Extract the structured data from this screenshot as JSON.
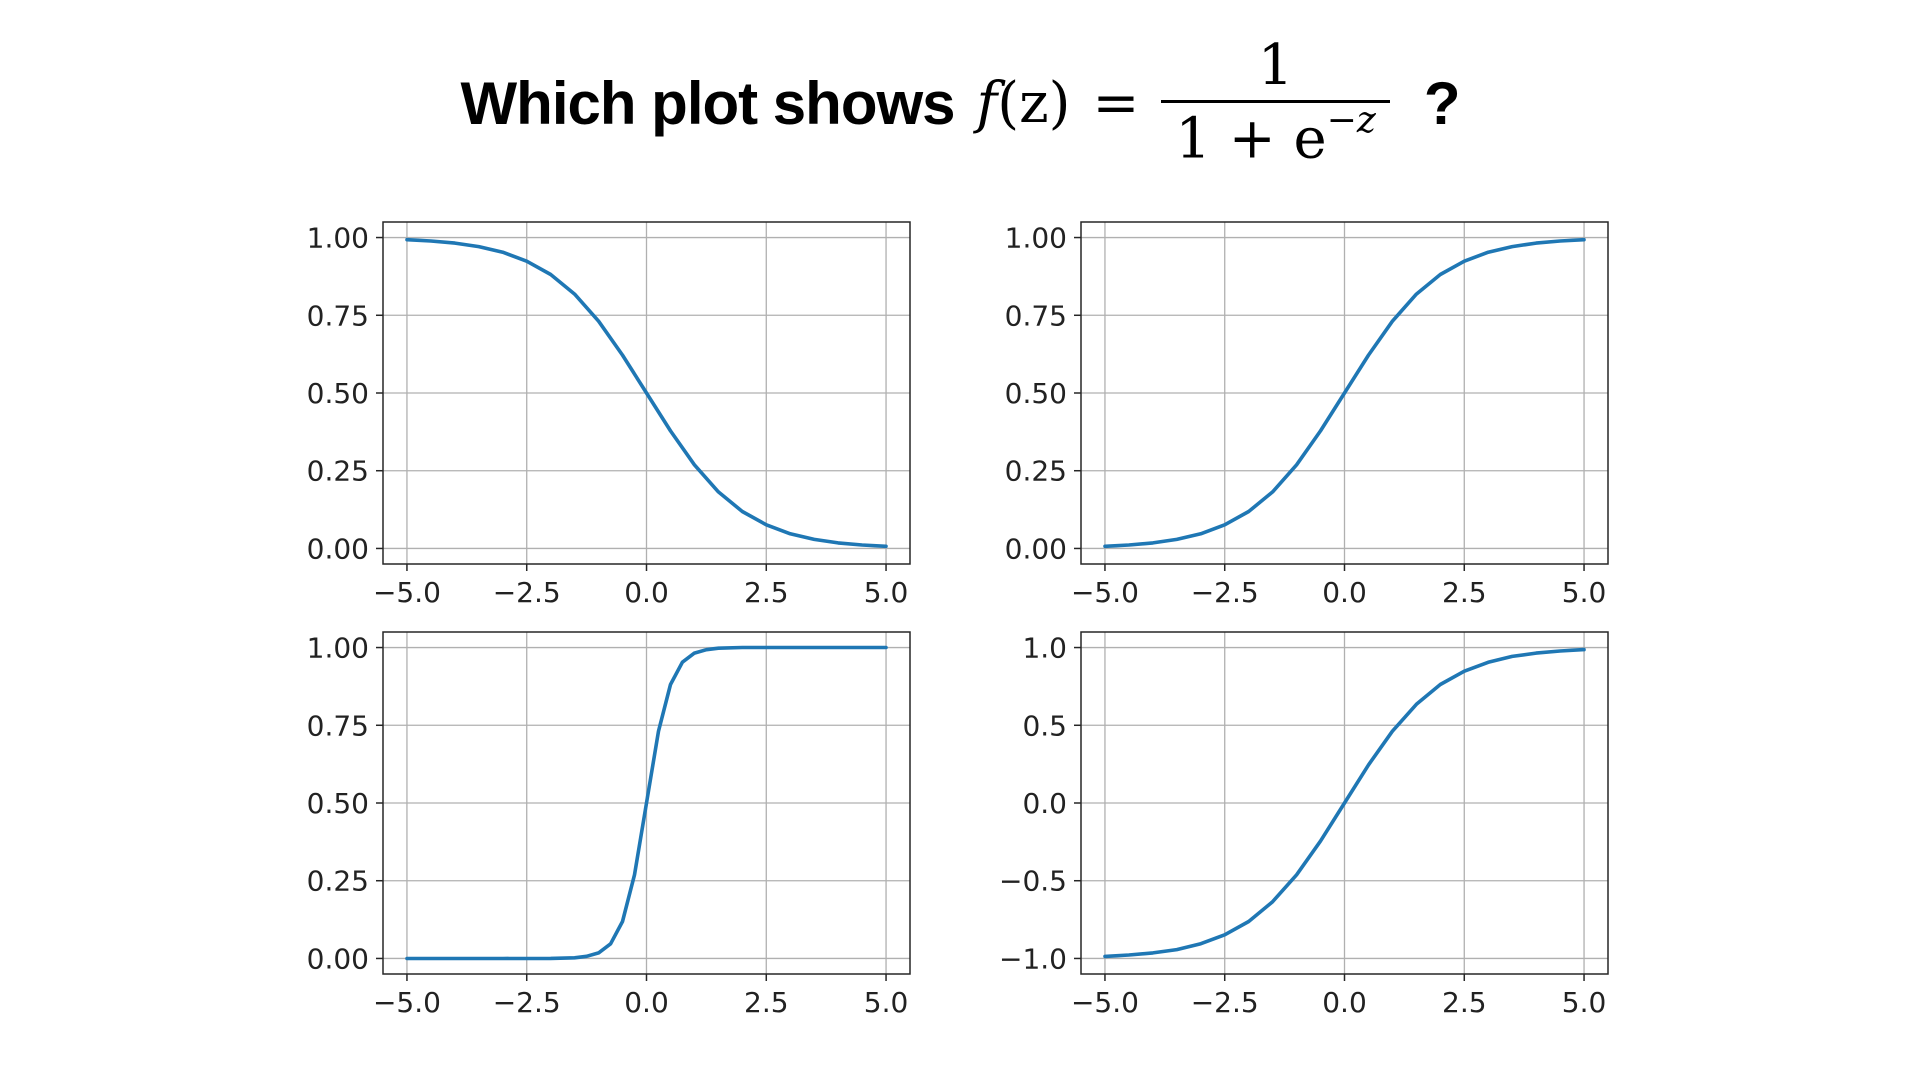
{
  "title": {
    "prefix": "Which plot shows",
    "math_lhs_f": "f",
    "math_lhs_arg": "(z)",
    "math_eq": "=",
    "math_num": "1",
    "math_den_base": "1 + e",
    "math_den_exp": "−z",
    "suffix": "?"
  },
  "colors": {
    "line": "#1f77b4",
    "grid": "#b0b0b0",
    "axis": "#262626"
  },
  "chart_data": [
    {
      "type": "line",
      "title": "",
      "xlabel": "",
      "ylabel": "",
      "xlim": [
        -5.5,
        5.5
      ],
      "ylim": [
        -0.05,
        1.05
      ],
      "grid": true,
      "xticks": [
        -5.0,
        -2.5,
        0.0,
        2.5,
        5.0
      ],
      "xtick_labels": [
        "−5.0",
        "−2.5",
        "0.0",
        "2.5",
        "5.0"
      ],
      "yticks": [
        0.0,
        0.25,
        0.5,
        0.75,
        1.0
      ],
      "ytick_labels": [
        "0.00",
        "0.25",
        "0.50",
        "0.75",
        "1.00"
      ],
      "series": [
        {
          "x": [
            -5.0,
            -4.5,
            -4.0,
            -3.5,
            -3.0,
            -2.5,
            -2.0,
            -1.5,
            -1.0,
            -0.5,
            0.0,
            0.5,
            1.0,
            1.5,
            2.0,
            2.5,
            3.0,
            3.5,
            4.0,
            4.5,
            5.0
          ],
          "y": [
            0.993,
            0.989,
            0.982,
            0.971,
            0.953,
            0.924,
            0.881,
            0.818,
            0.731,
            0.622,
            0.5,
            0.378,
            0.269,
            0.182,
            0.119,
            0.076,
            0.047,
            0.029,
            0.018,
            0.011,
            0.007
          ]
        }
      ]
    },
    {
      "type": "line",
      "title": "",
      "xlabel": "",
      "ylabel": "",
      "xlim": [
        -5.5,
        5.5
      ],
      "ylim": [
        -0.05,
        1.05
      ],
      "grid": true,
      "xticks": [
        -5.0,
        -2.5,
        0.0,
        2.5,
        5.0
      ],
      "xtick_labels": [
        "−5.0",
        "−2.5",
        "0.0",
        "2.5",
        "5.0"
      ],
      "yticks": [
        0.0,
        0.25,
        0.5,
        0.75,
        1.0
      ],
      "ytick_labels": [
        "0.00",
        "0.25",
        "0.50",
        "0.75",
        "1.00"
      ],
      "series": [
        {
          "x": [
            -5.0,
            -4.5,
            -4.0,
            -3.5,
            -3.0,
            -2.5,
            -2.0,
            -1.5,
            -1.0,
            -0.5,
            0.0,
            0.5,
            1.0,
            1.5,
            2.0,
            2.5,
            3.0,
            3.5,
            4.0,
            4.5,
            5.0
          ],
          "y": [
            0.007,
            0.011,
            0.018,
            0.029,
            0.047,
            0.076,
            0.119,
            0.182,
            0.269,
            0.378,
            0.5,
            0.622,
            0.731,
            0.818,
            0.881,
            0.924,
            0.953,
            0.971,
            0.982,
            0.989,
            0.993
          ]
        }
      ]
    },
    {
      "type": "line",
      "title": "",
      "xlabel": "",
      "ylabel": "",
      "xlim": [
        -5.5,
        5.5
      ],
      "ylim": [
        -0.05,
        1.05
      ],
      "grid": true,
      "xticks": [
        -5.0,
        -2.5,
        0.0,
        2.5,
        5.0
      ],
      "xtick_labels": [
        "−5.0",
        "−2.5",
        "0.0",
        "2.5",
        "5.0"
      ],
      "yticks": [
        0.0,
        0.25,
        0.5,
        0.75,
        1.0
      ],
      "ytick_labels": [
        "0.00",
        "0.25",
        "0.50",
        "0.75",
        "1.00"
      ],
      "series": [
        {
          "x": [
            -5.0,
            -3.0,
            -2.0,
            -1.5,
            -1.25,
            -1.0,
            -0.75,
            -0.5,
            -0.25,
            0.0,
            0.25,
            0.5,
            0.75,
            1.0,
            1.25,
            1.5,
            2.0,
            3.0,
            5.0
          ],
          "y": [
            0.0,
            0.0,
            0.0003,
            0.002,
            0.007,
            0.018,
            0.047,
            0.119,
            0.269,
            0.5,
            0.731,
            0.881,
            0.953,
            0.982,
            0.993,
            0.998,
            1.0,
            1.0,
            1.0
          ]
        }
      ]
    },
    {
      "type": "line",
      "title": "",
      "xlabel": "",
      "ylabel": "",
      "xlim": [
        -5.5,
        5.5
      ],
      "ylim": [
        -1.1,
        1.1
      ],
      "grid": true,
      "xticks": [
        -5.0,
        -2.5,
        0.0,
        2.5,
        5.0
      ],
      "xtick_labels": [
        "−5.0",
        "−2.5",
        "0.0",
        "2.5",
        "5.0"
      ],
      "yticks": [
        -1.0,
        -0.5,
        0.0,
        0.5,
        1.0
      ],
      "ytick_labels": [
        "−1.0",
        "−0.5",
        "0.0",
        "0.5",
        "1.0"
      ],
      "series": [
        {
          "x": [
            -5.0,
            -4.5,
            -4.0,
            -3.5,
            -3.0,
            -2.5,
            -2.0,
            -1.5,
            -1.0,
            -0.5,
            0.0,
            0.5,
            1.0,
            1.5,
            2.0,
            2.5,
            3.0,
            3.5,
            4.0,
            4.5,
            5.0
          ],
          "y": [
            -0.987,
            -0.978,
            -0.964,
            -0.943,
            -0.905,
            -0.848,
            -0.762,
            -0.635,
            -0.462,
            -0.245,
            0.0,
            0.245,
            0.462,
            0.635,
            0.762,
            0.848,
            0.905,
            0.943,
            0.964,
            0.978,
            0.987
          ]
        }
      ]
    }
  ]
}
